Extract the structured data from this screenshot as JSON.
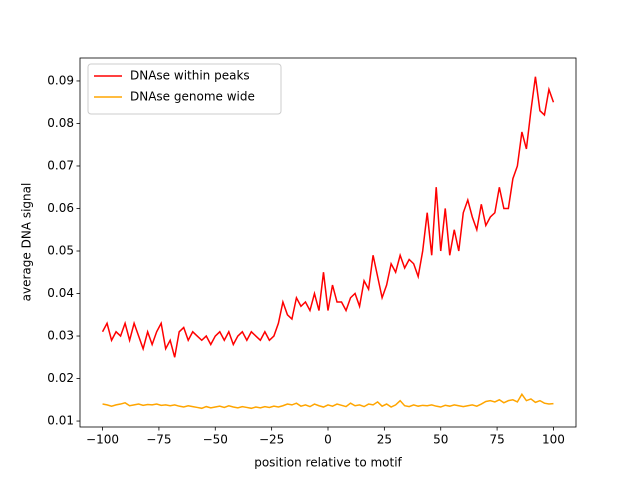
{
  "chart_data": {
    "type": "line",
    "xlabel": "position relative to motif",
    "ylabel": "average DNA signal",
    "x": [
      -100,
      -98,
      -96,
      -94,
      -92,
      -90,
      -88,
      -86,
      -84,
      -82,
      -80,
      -78,
      -76,
      -74,
      -72,
      -70,
      -68,
      -66,
      -64,
      -62,
      -60,
      -58,
      -56,
      -54,
      -52,
      -50,
      -48,
      -46,
      -44,
      -42,
      -40,
      -38,
      -36,
      -34,
      -32,
      -30,
      -28,
      -26,
      -24,
      -22,
      -20,
      -18,
      -16,
      -14,
      -12,
      -10,
      -8,
      -6,
      -4,
      -2,
      0,
      2,
      4,
      6,
      8,
      10,
      12,
      14,
      16,
      18,
      20,
      22,
      24,
      26,
      28,
      30,
      32,
      34,
      36,
      38,
      40,
      42,
      44,
      46,
      48,
      50,
      52,
      54,
      56,
      58,
      60,
      62,
      64,
      66,
      68,
      70,
      72,
      74,
      76,
      78,
      80,
      82,
      84,
      86,
      88,
      90,
      92,
      94,
      96,
      98,
      100
    ],
    "series": [
      {
        "name": "DNAse within peaks",
        "color": "#ff0000",
        "values": [
          0.031,
          0.033,
          0.029,
          0.031,
          0.03,
          0.033,
          0.029,
          0.033,
          0.03,
          0.027,
          0.031,
          0.028,
          0.031,
          0.033,
          0.027,
          0.029,
          0.025,
          0.031,
          0.032,
          0.029,
          0.031,
          0.03,
          0.029,
          0.03,
          0.028,
          0.03,
          0.031,
          0.029,
          0.031,
          0.028,
          0.03,
          0.031,
          0.029,
          0.031,
          0.03,
          0.029,
          0.031,
          0.029,
          0.03,
          0.033,
          0.038,
          0.035,
          0.034,
          0.039,
          0.037,
          0.038,
          0.036,
          0.04,
          0.036,
          0.045,
          0.036,
          0.042,
          0.038,
          0.038,
          0.036,
          0.039,
          0.04,
          0.037,
          0.043,
          0.041,
          0.049,
          0.044,
          0.039,
          0.042,
          0.047,
          0.045,
          0.049,
          0.046,
          0.048,
          0.047,
          0.044,
          0.05,
          0.059,
          0.049,
          0.065,
          0.05,
          0.06,
          0.049,
          0.055,
          0.05,
          0.059,
          0.062,
          0.058,
          0.055,
          0.061,
          0.056,
          0.058,
          0.059,
          0.065,
          0.06,
          0.06,
          0.067,
          0.07,
          0.078,
          0.074,
          0.083,
          0.091,
          0.083,
          0.082,
          0.088,
          0.085
        ]
      },
      {
        "name": "DNAse genome wide",
        "color": "#ffa500",
        "values": [
          0.014,
          0.0138,
          0.0135,
          0.0138,
          0.014,
          0.0143,
          0.0136,
          0.0138,
          0.014,
          0.0137,
          0.0139,
          0.0138,
          0.014,
          0.0137,
          0.0138,
          0.0136,
          0.0138,
          0.0135,
          0.0133,
          0.0136,
          0.0134,
          0.0132,
          0.013,
          0.0134,
          0.0131,
          0.0133,
          0.0135,
          0.0132,
          0.0136,
          0.0133,
          0.0131,
          0.0134,
          0.0132,
          0.013,
          0.0133,
          0.0131,
          0.0134,
          0.0132,
          0.0135,
          0.0133,
          0.0136,
          0.014,
          0.0138,
          0.0142,
          0.0135,
          0.0138,
          0.0134,
          0.014,
          0.0136,
          0.0133,
          0.0138,
          0.0135,
          0.014,
          0.0137,
          0.0134,
          0.0142,
          0.0136,
          0.0138,
          0.0134,
          0.014,
          0.0138,
          0.0145,
          0.0135,
          0.014,
          0.0133,
          0.0138,
          0.0148,
          0.0136,
          0.0134,
          0.0138,
          0.0135,
          0.0137,
          0.0136,
          0.0138,
          0.0135,
          0.0133,
          0.0137,
          0.0135,
          0.0138,
          0.0136,
          0.0134,
          0.0136,
          0.0138,
          0.0135,
          0.014,
          0.0146,
          0.0148,
          0.0145,
          0.015,
          0.0143,
          0.0148,
          0.015,
          0.0145,
          0.0163,
          0.0148,
          0.0152,
          0.0144,
          0.0148,
          0.0142,
          0.014,
          0.0141
        ]
      }
    ],
    "xlim": [
      -110,
      110
    ],
    "ylim": [
      0.0086,
      0.0954
    ],
    "xticks": [
      {
        "value": -100,
        "label": "−100"
      },
      {
        "value": -75,
        "label": "−75"
      },
      {
        "value": -50,
        "label": "−50"
      },
      {
        "value": -25,
        "label": "−25"
      },
      0,
      25,
      50,
      75,
      100
    ],
    "yticks": [
      0.01,
      0.02,
      0.03,
      0.04,
      0.05,
      0.06,
      0.07,
      0.08,
      0.09
    ],
    "legend": "upper left"
  }
}
